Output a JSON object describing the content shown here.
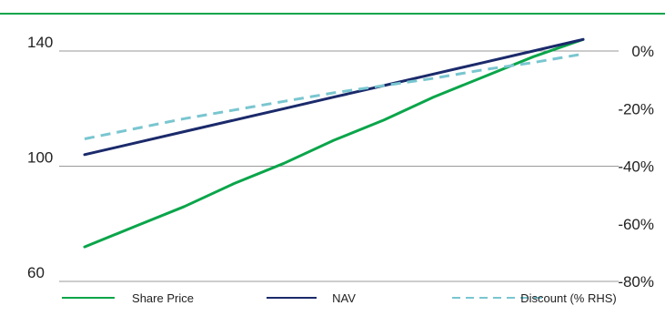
{
  "chart_data": {
    "type": "line",
    "title": "",
    "xlabel": "",
    "ylabel": "",
    "y_left": {
      "ticks": [
        "140",
        "100",
        "60"
      ],
      "range": [
        60,
        140
      ]
    },
    "y_right": {
      "ticks": [
        "0%",
        "-20%",
        "-40%",
        "-60%",
        "-80%"
      ],
      "range": [
        -80,
        0
      ]
    },
    "x_range": [
      0,
      1
    ],
    "grid": true,
    "legend_position": "bottom",
    "series": [
      {
        "name": "Share Price",
        "axis": "left",
        "color": "#0aa54a",
        "style": "solid",
        "x": [
          0,
          0.1,
          0.2,
          0.3,
          0.4,
          0.5,
          0.6,
          0.7,
          0.8,
          0.9,
          1
        ],
        "y": [
          72,
          79,
          86,
          94,
          101,
          109,
          116,
          124,
          131,
          138,
          144
        ]
      },
      {
        "name": "NAV",
        "axis": "left",
        "color": "#1b2a6b",
        "style": "solid",
        "x": [
          0,
          0.1,
          0.2,
          0.3,
          0.4,
          0.5,
          0.6,
          0.7,
          0.8,
          0.9,
          1
        ],
        "y": [
          104,
          108,
          112,
          116,
          120,
          124,
          128,
          132,
          136,
          140,
          144
        ]
      },
      {
        "name": "Discount (% RHS)",
        "axis": "right",
        "color": "#79c6d0",
        "style": "dashed",
        "x": [
          0,
          0.1,
          0.2,
          0.3,
          0.4,
          0.5,
          0.6,
          0.7,
          0.8,
          0.9,
          1
        ],
        "y": [
          -30.5,
          -27,
          -23.5,
          -20.5,
          -17.5,
          -14.5,
          -12,
          -9.5,
          -6.5,
          -4,
          -1
        ]
      }
    ]
  },
  "colors": {
    "top_rule": "#0aa54a",
    "gridline": "#9a9a9a"
  }
}
